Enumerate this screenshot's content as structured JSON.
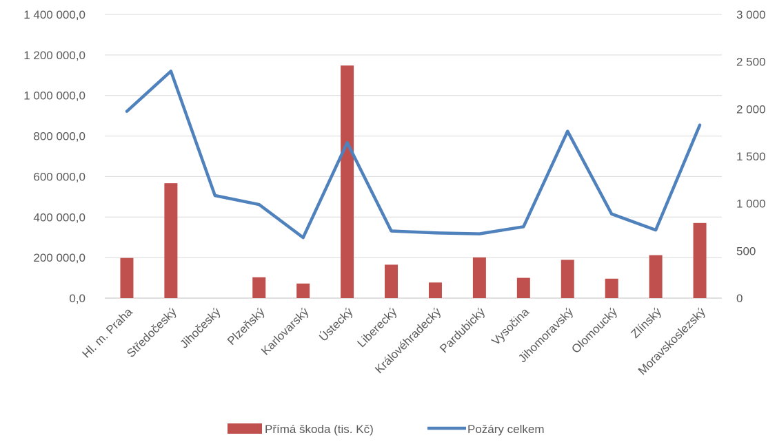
{
  "chart_data": {
    "type": "bar",
    "categories": [
      "Hl. m. Praha",
      "Středočeský",
      "Jihočeský",
      "Plzeňský",
      "Karlovarský",
      "Ústecký",
      "Liberecký",
      "Královéhradecký",
      "Pardubický",
      "Vysočina",
      "Jihomoravský",
      "Olomoucký",
      "Zlínský",
      "Moravskoslezský"
    ],
    "series": [
      {
        "name": "Přímá škoda (tis. Kč)",
        "type": "bar",
        "axis": "left",
        "color": "#C0504D",
        "values": [
          198000,
          567000,
          0,
          103000,
          72000,
          1148000,
          165000,
          77000,
          201000,
          100000,
          189000,
          96000,
          212000,
          371000
        ]
      },
      {
        "name": "Požáry celkem",
        "type": "line",
        "axis": "right",
        "color": "#4F81BD",
        "values": [
          1975,
          2400,
          1085,
          990,
          640,
          1645,
          710,
          690,
          680,
          755,
          1765,
          890,
          720,
          1830
        ]
      }
    ],
    "y_left": {
      "min": 0,
      "max": 1400000,
      "ticks": [
        "0,0",
        "200 000,0",
        "400 000,0",
        "600 000,0",
        "800 000,0",
        "1 000 000,0",
        "1 200 000,0",
        "1 400 000,0"
      ]
    },
    "y_right": {
      "min": 0,
      "max": 3000,
      "ticks": [
        "0",
        "500",
        "1 000",
        "1 500",
        "2 000",
        "2 500",
        "3 000"
      ]
    },
    "title": "",
    "xlabel": "",
    "ylabel": "",
    "grid": true,
    "legend_position": "bottom"
  }
}
